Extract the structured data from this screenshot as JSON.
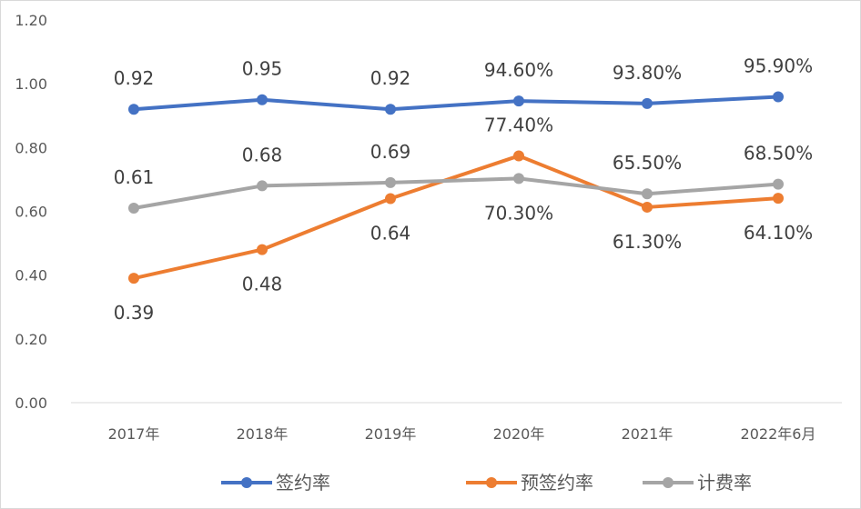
{
  "chart_data": {
    "type": "line",
    "title": "",
    "xlabel": "",
    "ylabel": "",
    "categories": [
      "2017年",
      "2018年",
      "2019年",
      "2020年",
      "2021年",
      "2022年6月"
    ],
    "ylim": [
      0,
      1.2
    ],
    "yticks": [
      "0.00",
      "0.20",
      "0.40",
      "0.60",
      "0.80",
      "1.00",
      "1.20"
    ],
    "grid": false,
    "legend": "bottom",
    "series": [
      {
        "name": "签约率",
        "color": "#4472C4",
        "values": [
          0.92,
          0.95,
          0.92,
          0.946,
          0.938,
          0.959
        ],
        "labels": [
          "0.92",
          "0.95",
          "0.92",
          "94.60%",
          "93.80%",
          "95.90%"
        ]
      },
      {
        "name": "预签约率",
        "color": "#ED7D31",
        "values": [
          0.39,
          0.48,
          0.64,
          0.774,
          0.613,
          0.641
        ],
        "labels": [
          "0.39",
          "0.48",
          "0.64",
          "77.40%",
          "61.30%",
          "64.10%"
        ]
      },
      {
        "name": "计费率",
        "color": "#A5A5A5",
        "values": [
          0.61,
          0.68,
          0.69,
          0.703,
          0.655,
          0.685
        ],
        "labels": [
          "0.61",
          "0.68",
          "0.69",
          "70.30%",
          "65.50%",
          "68.50%"
        ]
      }
    ]
  }
}
